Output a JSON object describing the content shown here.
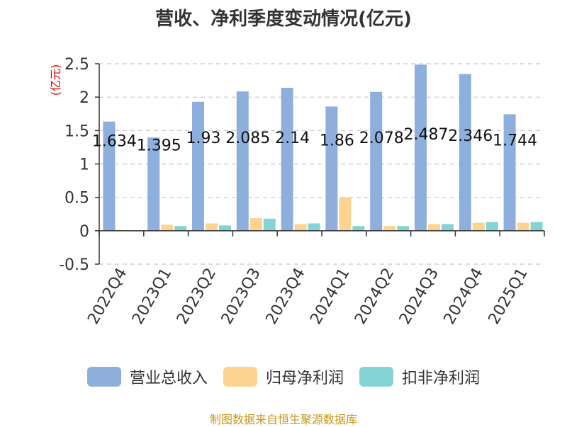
{
  "chart_data": {
    "type": "bar",
    "title": "营收、净利季度变动情况(亿元)",
    "ylabel": "(亿元)",
    "xlabel": "",
    "ylim": [
      -0.5,
      2.5
    ],
    "yticks": [
      "-0.5",
      "0",
      "0.5",
      "1",
      "1.5",
      "2",
      "2.5"
    ],
    "categories": [
      "2022Q4",
      "2023Q1",
      "2023Q2",
      "2023Q3",
      "2023Q4",
      "2024Q1",
      "2024Q2",
      "2024Q3",
      "2024Q4",
      "2025Q1"
    ],
    "series": [
      {
        "name": "营业总收入",
        "color": "#8eafdc",
        "values": [
          1.634,
          1.395,
          1.93,
          2.085,
          2.14,
          1.86,
          2.078,
          2.487,
          2.346,
          1.744
        ],
        "labels": [
          "1.634",
          "1.395",
          "1.93",
          "2.085",
          "2.14",
          "1.86",
          "2.078",
          "2.487",
          "2.346",
          "1.744"
        ]
      },
      {
        "name": "归母净利润",
        "color": "#fdd48f",
        "values": [
          0.01,
          0.09,
          0.11,
          0.19,
          0.1,
          0.5,
          0.07,
          0.1,
          0.12,
          0.12
        ]
      },
      {
        "name": "扣非净利润",
        "color": "#84d4d6",
        "values": [
          -0.01,
          0.07,
          0.08,
          0.18,
          0.11,
          0.07,
          0.07,
          0.1,
          0.13,
          0.13
        ]
      }
    ],
    "grid": true,
    "legend_position": "bottom"
  },
  "footer": {
    "source": "制图数据来自恒生聚源数据库",
    "source_color": "#c8961e"
  },
  "colors": {
    "axis": "#333333",
    "grid": "#c8c8c8",
    "ylabel": "#e00000"
  }
}
